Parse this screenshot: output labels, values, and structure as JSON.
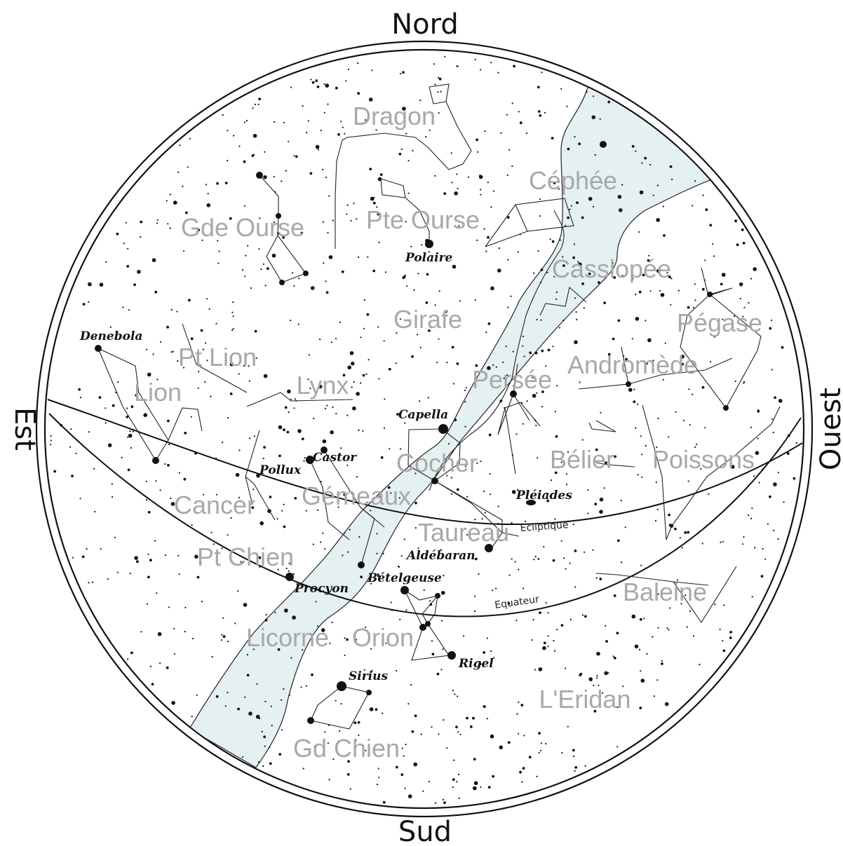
{
  "cardinals": {
    "north": "Nord",
    "south": "Sud",
    "east": "Est",
    "west": "Ouest"
  },
  "constellations": {
    "dragon": "Dragon",
    "cephee": "Céphée",
    "gde_ourse": "Gde Ourse",
    "pte_ourse": "Pte Ourse",
    "cassiopee": "Cassiopée",
    "girafe": "Girafe",
    "pegase": "Pégase",
    "pt_lion": "Pt Lion",
    "andromede": "Andromède",
    "lion": "Lion",
    "lynx": "Lynx",
    "persee": "Persée",
    "cocher": "Cocher",
    "belier": "Bélier",
    "poissons": "Poissons",
    "cancer": "Cancer",
    "gemeaux": "Gémeaux",
    "taureau": "Taureau",
    "pt_chien": "Pt Chien",
    "baleine": "Baleine",
    "licorne": "Licorne",
    "orion": "Orion",
    "eridan": "L'Eridan",
    "gd_chien": "Gd Chien"
  },
  "stars": {
    "polaire": "Polaire",
    "denebola": "Denebola",
    "capella": "Capella",
    "castor": "Castor",
    "pollux": "Pollux",
    "pleiades": "Pléiades",
    "aldebaran": "Aldébaran",
    "betelgeuse": "Bételgeuse",
    "procyon": "Procyon",
    "rigel": "Rigel",
    "sirius": "Sirius"
  },
  "lines": {
    "ecliptic": "Ecliptique",
    "equator": "Equateur"
  },
  "colors": {
    "milky_way": "#e4f0f2",
    "constellation_label": "#a8a8a8",
    "ink": "#111111"
  }
}
